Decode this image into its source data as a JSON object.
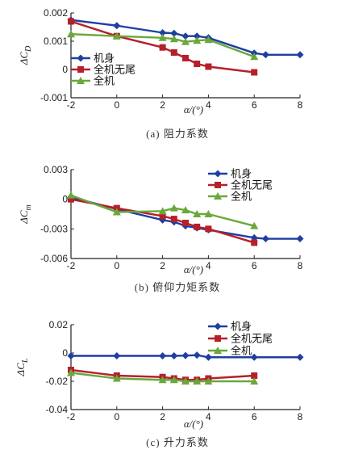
{
  "chart_data": [
    {
      "type": "line",
      "caption": "(a) 阻力系数",
      "ylabel": "ΔC_D",
      "xlabel": "α/(°)",
      "xlim": [
        -2,
        8
      ],
      "ylim": [
        -0.001,
        0.002
      ],
      "xticks": [
        "-2",
        "0",
        "2",
        "4",
        "6",
        "8"
      ],
      "yticks": [
        "-0.001",
        "0",
        "0.001",
        "0.002"
      ],
      "legend_position": "left",
      "series": [
        {
          "name": "机身",
          "color": "#1f3fa0",
          "marker": "diamond",
          "x": [
            -2,
            0,
            2,
            2.5,
            3,
            3.5,
            4,
            6,
            6.5,
            8
          ],
          "y": [
            0.00175,
            0.00155,
            0.0013,
            0.00128,
            0.00118,
            0.00118,
            0.00112,
            0.00058,
            0.00052,
            0.00052
          ]
        },
        {
          "name": "全机无尾",
          "color": "#b5202b",
          "marker": "square",
          "x": [
            -2,
            0,
            2,
            2.5,
            3,
            3.5,
            4,
            6
          ],
          "y": [
            0.0017,
            0.00118,
            0.00078,
            0.0006,
            0.0004,
            0.0002,
            0.0001,
            -0.0001
          ]
        },
        {
          "name": "全机",
          "color": "#6aa83a",
          "marker": "triangle",
          "x": [
            -2,
            0,
            2,
            2.5,
            3,
            3.5,
            4,
            6
          ],
          "y": [
            0.00125,
            0.00118,
            0.00112,
            0.00108,
            0.00098,
            0.00102,
            0.00105,
            0.00045
          ]
        }
      ]
    },
    {
      "type": "line",
      "caption": "(b) 俯仰力矩系数",
      "ylabel": "ΔC_m",
      "xlabel": "α/(°)",
      "xlim": [
        -2,
        8
      ],
      "ylim": [
        -0.006,
        0.003
      ],
      "xticks": [
        "-2",
        "0",
        "2",
        "4",
        "6",
        "8"
      ],
      "yticks": [
        "-0.006",
        "-0.003",
        "0",
        "0.003"
      ],
      "legend_position": "top-right",
      "series": [
        {
          "name": "机身",
          "color": "#1f3fa0",
          "marker": "diamond",
          "x": [
            -2,
            0,
            2,
            2.5,
            3,
            3.5,
            4,
            6,
            6.5,
            8
          ],
          "y": [
            0.0002,
            -0.001,
            -0.0021,
            -0.0023,
            -0.0027,
            -0.0029,
            -0.0031,
            -0.0039,
            -0.004,
            -0.004
          ]
        },
        {
          "name": "全机无尾",
          "color": "#b5202b",
          "marker": "square",
          "x": [
            -2,
            0,
            2,
            2.5,
            3,
            3.5,
            4,
            6
          ],
          "y": [
            0.0,
            -0.0009,
            -0.0017,
            -0.002,
            -0.0024,
            -0.0028,
            -0.003,
            -0.0044
          ]
        },
        {
          "name": "全机",
          "color": "#6aa83a",
          "marker": "triangle",
          "x": [
            -2,
            0,
            2,
            2.5,
            3,
            3.5,
            4,
            6
          ],
          "y": [
            0.0004,
            -0.0013,
            -0.0012,
            -0.0009,
            -0.0011,
            -0.0015,
            -0.0015,
            -0.0027
          ]
        }
      ]
    },
    {
      "type": "line",
      "caption": "(c) 升力系数",
      "ylabel": "ΔC_L",
      "xlabel": "α/(°)",
      "xlim": [
        -2,
        8
      ],
      "ylim": [
        -0.04,
        0.02
      ],
      "xticks": [
        "-2",
        "0",
        "2",
        "4",
        "6",
        "8"
      ],
      "yticks": [
        "-0.04",
        "-0.02",
        "0",
        "0.02"
      ],
      "legend_position": "top-right",
      "series": [
        {
          "name": "机身",
          "color": "#1f3fa0",
          "marker": "diamond",
          "x": [
            -2,
            0,
            2,
            2.5,
            3,
            3.5,
            4,
            6,
            8
          ],
          "y": [
            -0.002,
            -0.002,
            -0.002,
            -0.002,
            -0.0018,
            -0.0015,
            -0.003,
            -0.003,
            -0.003
          ]
        },
        {
          "name": "全机无尾",
          "color": "#b5202b",
          "marker": "square",
          "x": [
            -2,
            0,
            2,
            2.5,
            3,
            3.5,
            4,
            6
          ],
          "y": [
            -0.012,
            -0.016,
            -0.017,
            -0.018,
            -0.019,
            -0.019,
            -0.018,
            -0.016
          ]
        },
        {
          "name": "全机",
          "color": "#6aa83a",
          "marker": "triangle",
          "x": [
            -2,
            0,
            2,
            2.5,
            3,
            3.5,
            4,
            6
          ],
          "y": [
            -0.014,
            -0.018,
            -0.019,
            -0.019,
            -0.02,
            -0.02,
            -0.02,
            -0.02
          ]
        }
      ]
    }
  ]
}
